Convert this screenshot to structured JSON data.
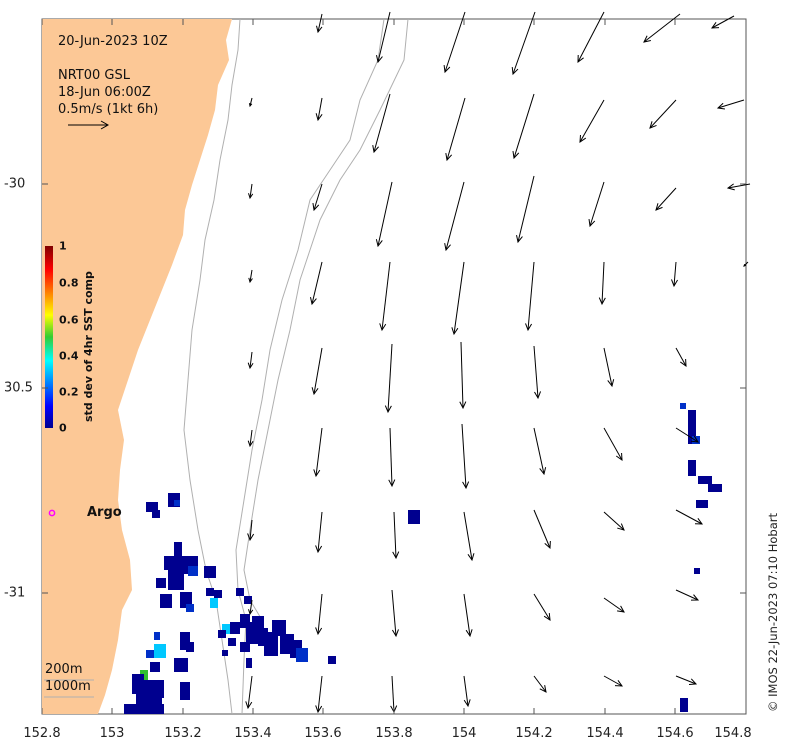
{
  "map": {
    "datetime": "20-Jun-2023 10Z",
    "product": "NRT00 GSL",
    "product_time": "18-Jun 06:00Z",
    "scale_label": "0.5m/s (1kt 6h)",
    "argo_label": "Argo",
    "depth_200": "200m",
    "depth_1000": "1000m",
    "credit": "© IMOS 22-Jun-2023 07:10 Hobart",
    "colorbar_title": "std dev of 4hr SST comp",
    "colorbar_ticks": [
      "1",
      "0.8",
      "0.6",
      "0.4",
      "0.2",
      "0"
    ],
    "x_ticks": [
      "152.8",
      "153",
      "153.2",
      "153.4",
      "153.6",
      "153.8",
      "154",
      "154.2",
      "154.4",
      "154.6",
      "154.8"
    ],
    "y_ticks": [
      "-30",
      "30.5",
      "-31"
    ],
    "colors": {
      "land": "#fcc896",
      "sst_dark": "#00008f",
      "arrow": "#000000"
    }
  }
}
